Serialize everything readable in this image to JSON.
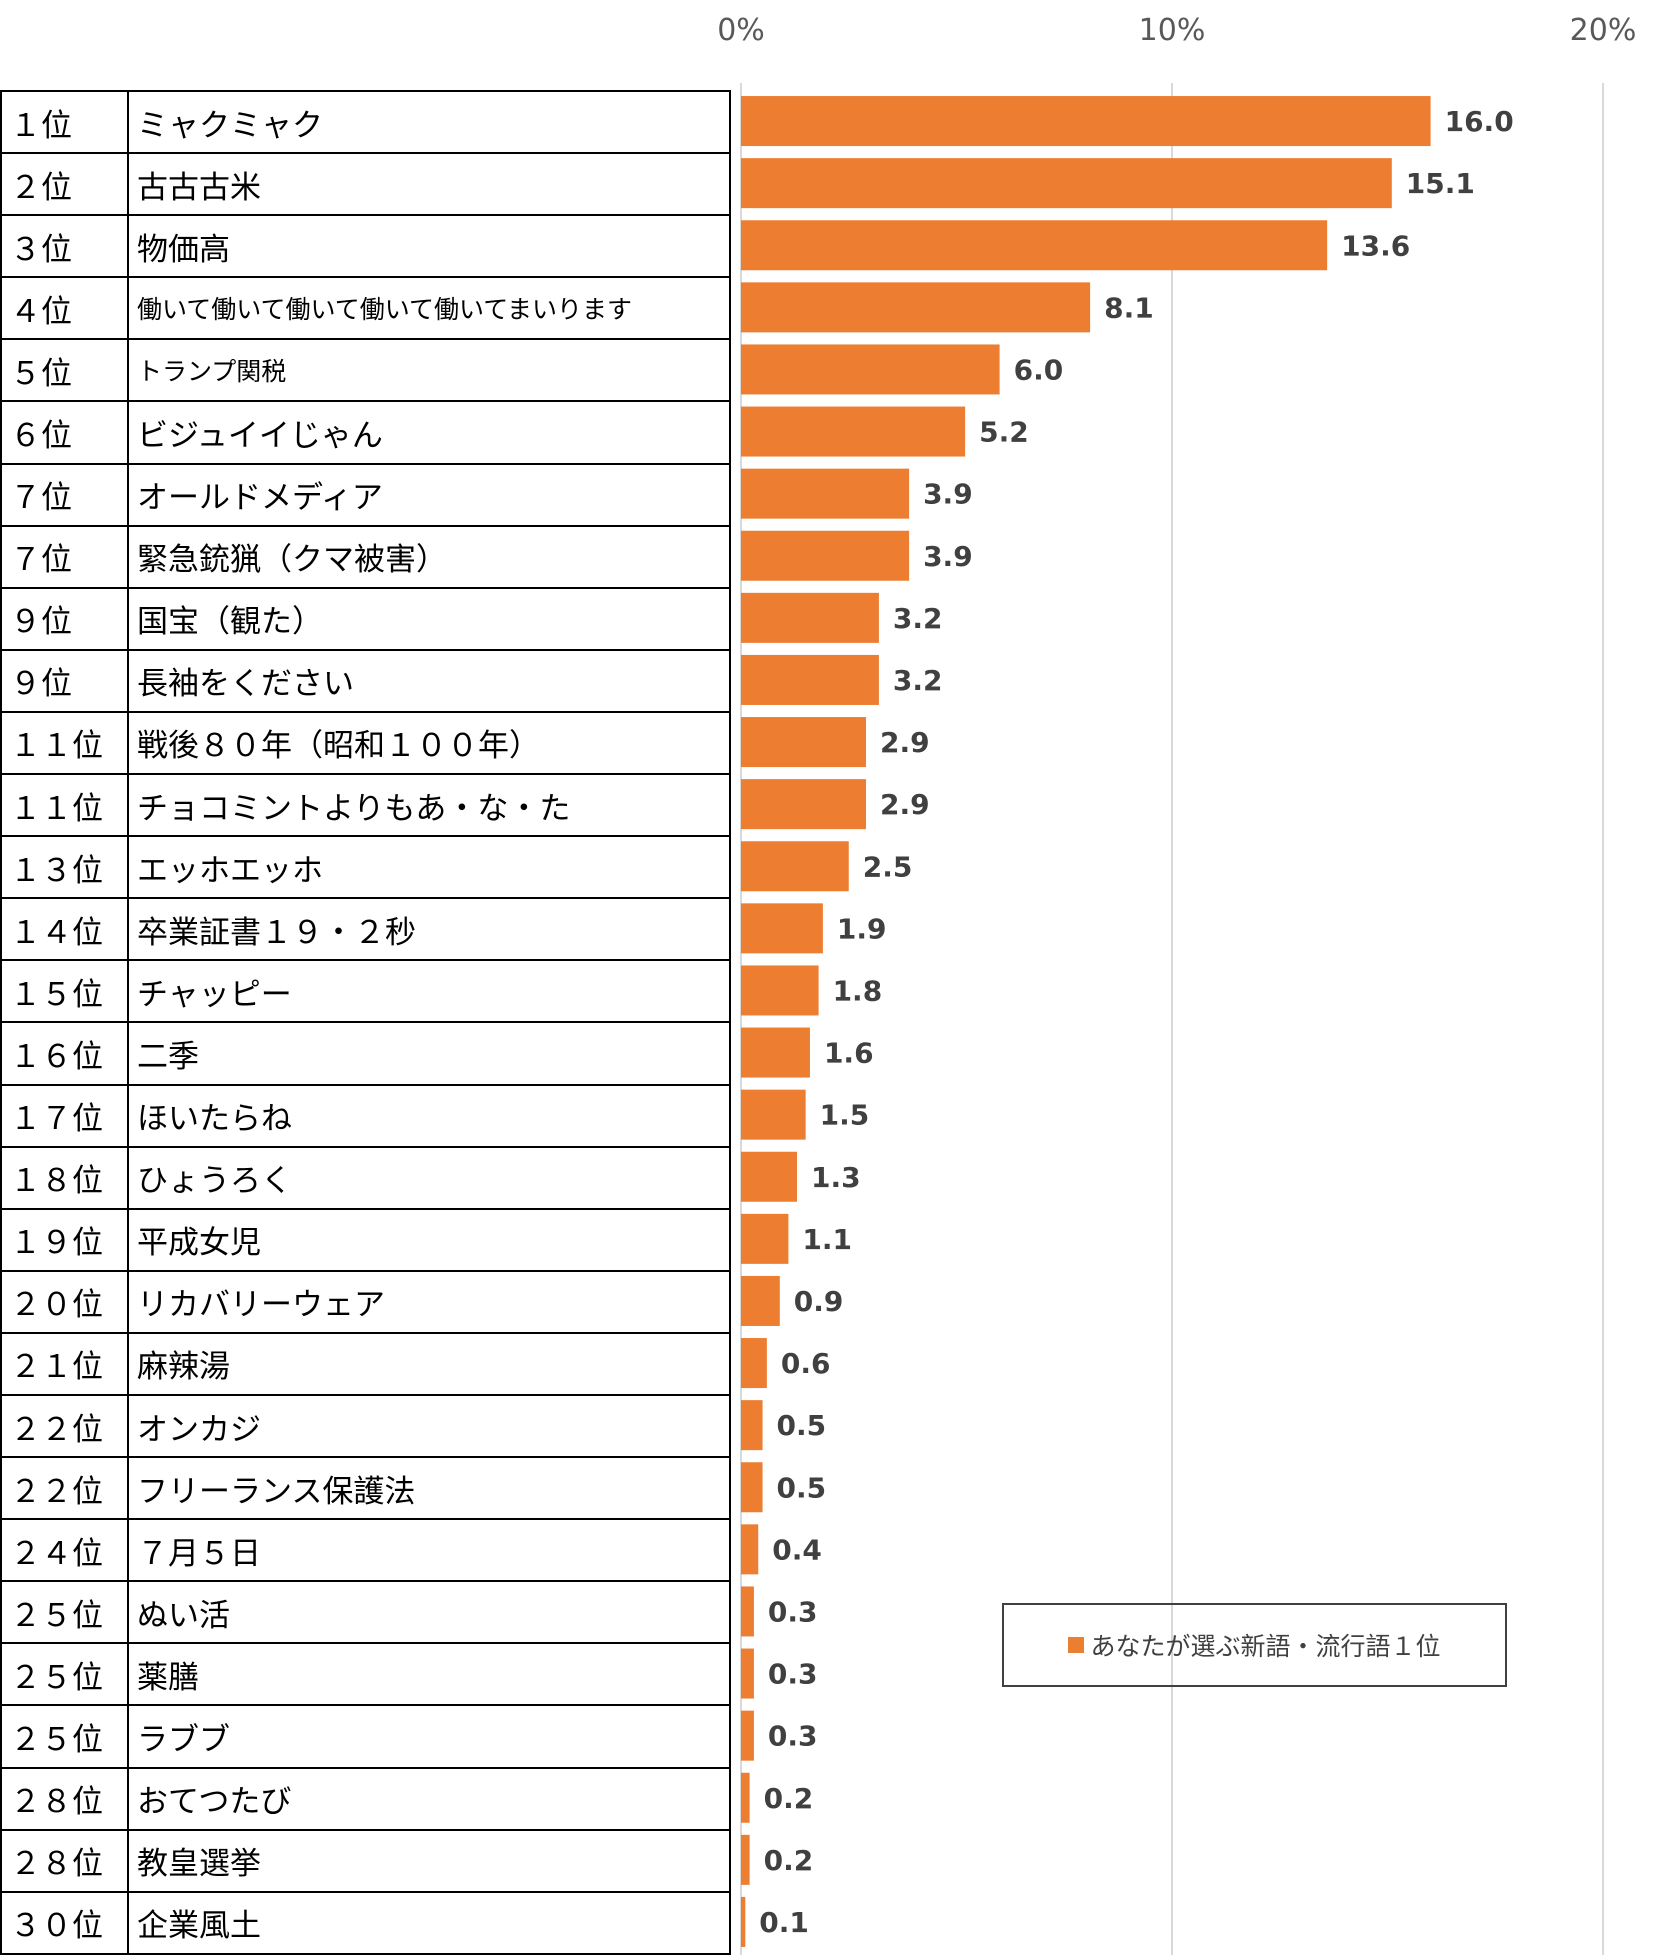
{
  "chart_data": {
    "type": "bar",
    "orientation": "horizontal",
    "x_ticks": [
      "0%",
      "10%",
      "20%"
    ],
    "xlim": [
      0,
      20
    ],
    "grid": true,
    "series": [
      {
        "name": "あなたが選ぶ新語・流行語１位",
        "color": "#ED7D31"
      }
    ],
    "rows": [
      {
        "rank": "１位",
        "word": "ミャクミャク",
        "value": 16.0,
        "label": "16.0"
      },
      {
        "rank": "２位",
        "word": "古古古米",
        "value": 15.1,
        "label": "15.1"
      },
      {
        "rank": "３位",
        "word": "物価高",
        "value": 13.6,
        "label": "13.6"
      },
      {
        "rank": "４位",
        "word": "働いて働いて働いて働いて働いてまいります",
        "value": 8.1,
        "label": "8.1",
        "small": true
      },
      {
        "rank": "５位",
        "word": "トランプ関税",
        "value": 6.0,
        "label": "6.0",
        "small": true
      },
      {
        "rank": "６位",
        "word": "ビジュイイじゃん",
        "value": 5.2,
        "label": "5.2"
      },
      {
        "rank": "７位",
        "word": "オールドメディア",
        "value": 3.9,
        "label": "3.9"
      },
      {
        "rank": "７位",
        "word": "緊急銃猟（クマ被害）",
        "value": 3.9,
        "label": "3.9"
      },
      {
        "rank": "９位",
        "word": "国宝（観た）",
        "value": 3.2,
        "label": "3.2"
      },
      {
        "rank": "９位",
        "word": "長袖をください",
        "value": 3.2,
        "label": "3.2"
      },
      {
        "rank": "１１位",
        "word": "戦後８０年（昭和１００年）",
        "value": 2.9,
        "label": "2.9"
      },
      {
        "rank": "１１位",
        "word": "チョコミントよりもあ・な・た",
        "value": 2.9,
        "label": "2.9"
      },
      {
        "rank": "１３位",
        "word": "エッホエッホ",
        "value": 2.5,
        "label": "2.5"
      },
      {
        "rank": "１４位",
        "word": "卒業証書１９・２秒",
        "value": 1.9,
        "label": "1.9"
      },
      {
        "rank": "１５位",
        "word": "チャッピー",
        "value": 1.8,
        "label": "1.8"
      },
      {
        "rank": "１６位",
        "word": "二季",
        "value": 1.6,
        "label": "1.6"
      },
      {
        "rank": "１７位",
        "word": "ほいたらね",
        "value": 1.5,
        "label": "1.5"
      },
      {
        "rank": "１８位",
        "word": "ひょうろく",
        "value": 1.3,
        "label": "1.3"
      },
      {
        "rank": "１９位",
        "word": "平成女児",
        "value": 1.1,
        "label": "1.1"
      },
      {
        "rank": "２０位",
        "word": "リカバリーウェア",
        "value": 0.9,
        "label": "0.9"
      },
      {
        "rank": "２１位",
        "word": "麻辣湯",
        "value": 0.6,
        "label": "0.6"
      },
      {
        "rank": "２２位",
        "word": "オンカジ",
        "value": 0.5,
        "label": "0.5"
      },
      {
        "rank": "２２位",
        "word": "フリーランス保護法",
        "value": 0.5,
        "label": "0.5"
      },
      {
        "rank": "２４位",
        "word": "７月５日",
        "value": 0.4,
        "label": "0.4"
      },
      {
        "rank": "２５位",
        "word": "ぬい活",
        "value": 0.3,
        "label": "0.3"
      },
      {
        "rank": "２５位",
        "word": "薬膳",
        "value": 0.3,
        "label": "0.3"
      },
      {
        "rank": "２５位",
        "word": "ラブブ",
        "value": 0.3,
        "label": "0.3"
      },
      {
        "rank": "２８位",
        "word": "おてつたび",
        "value": 0.2,
        "label": "0.2"
      },
      {
        "rank": "２８位",
        "word": "教皇選挙",
        "value": 0.2,
        "label": "0.2"
      },
      {
        "rank": "３０位",
        "word": "企業風土",
        "value": 0.1,
        "label": "0.1"
      }
    ]
  }
}
